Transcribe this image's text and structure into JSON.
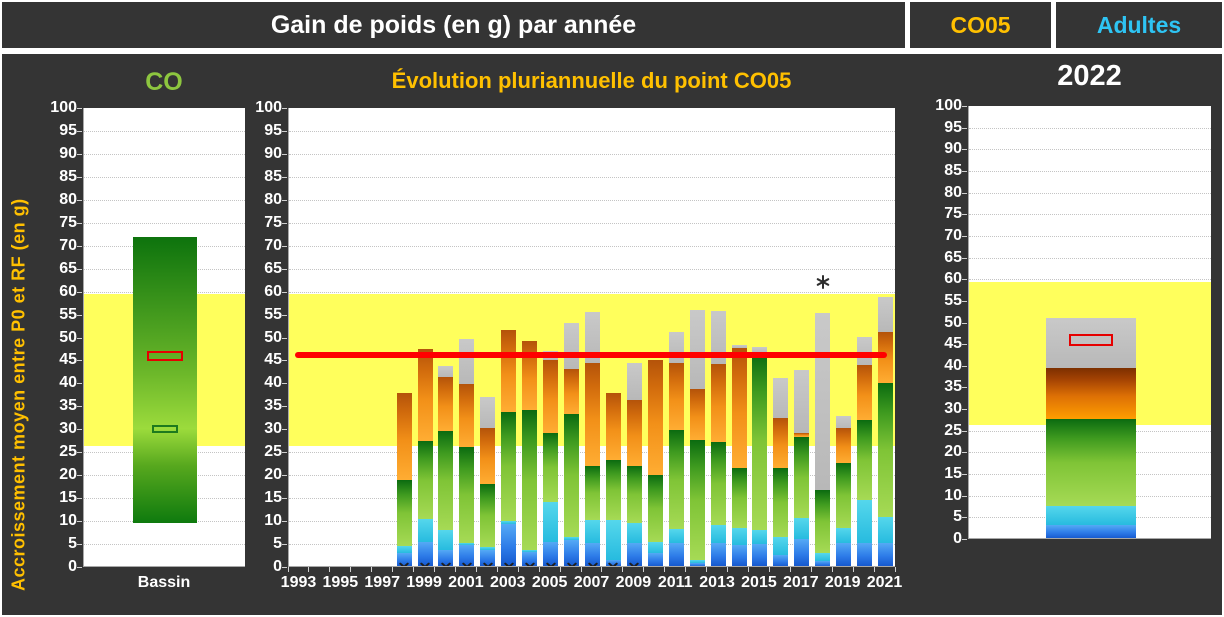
{
  "header": {
    "title": "Gain de poids (en g) par année",
    "code": "CO05",
    "population": "Adultes"
  },
  "y_axis": {
    "title": "Accroissement moyen entre P0 et RF (en g)",
    "min": 0,
    "max": 100,
    "step": 5
  },
  "reference": {
    "band_low": 26.3,
    "band_high": 59.4,
    "line_value": 46.2,
    "band_color": "#FFFF5C",
    "line_color": "#FF0000"
  },
  "colors": {
    "background_dark": "#343434",
    "header_code": "#FFC000",
    "header_population": "#2EC4F3",
    "title_left": "#8DC63F",
    "title_middle": "#FFC000",
    "segment_blue": "#2D7BE8",
    "segment_cyan": "#27BBDF",
    "segment_green": "#0B6B10",
    "segment_orange": "#D06A0C",
    "segment_gray": "#BFBFBF"
  },
  "chart_data": [
    {
      "panel": "left",
      "type": "bar",
      "title": "CO",
      "category_label": "Bassin",
      "ylim": [
        0,
        100
      ],
      "bar_range": [
        9.5,
        72
      ],
      "markers": [
        {
          "name": "red-box",
          "value": 46
        },
        {
          "name": "green-box",
          "value": 30
        }
      ]
    },
    {
      "panel": "middle",
      "type": "stacked-bar",
      "title": "Évolution pluriannuelle du point CO05",
      "ylim": [
        0,
        100
      ],
      "x_range": [
        1993,
        2021
      ],
      "x_tick_labels": [
        "1993",
        "1995",
        "1997",
        "1999",
        "2001",
        "2003",
        "2005",
        "2007",
        "2009",
        "2011",
        "2013",
        "2015",
        "2017",
        "2019",
        "2021"
      ],
      "segment_order": [
        "blue",
        "cyan",
        "green",
        "orange",
        "gray"
      ],
      "reference_line": 46.2,
      "reference_band": [
        26.3,
        59.4
      ],
      "annotation": {
        "symbol": "six-spoke-asterisk",
        "year": 2018,
        "value": 62
      },
      "zero_marker_years": [
        1998,
        1999,
        2000,
        2001,
        2002,
        2003,
        2004,
        2005,
        2006,
        2007,
        2008,
        2009
      ],
      "bars": [
        {
          "year": 1998,
          "tops": {
            "blue": 3.0,
            "cyan": 4.6,
            "green": 19.0,
            "orange": 37.8,
            "gray": null
          }
        },
        {
          "year": 1999,
          "tops": {
            "blue": 5.5,
            "cyan": 10.5,
            "green": 27.5,
            "orange": 47.5,
            "gray": null
          }
        },
        {
          "year": 2000,
          "tops": {
            "blue": 3.8,
            "cyan": 8.1,
            "green": 29.6,
            "orange": 41.5,
            "gray": 43.8
          }
        },
        {
          "year": 2001,
          "tops": {
            "blue": 4.8,
            "cyan": 5.3,
            "green": 26.1,
            "orange": 39.9,
            "gray": 49.6
          }
        },
        {
          "year": 2002,
          "tops": {
            "blue": 3.8,
            "cyan": 4.3,
            "green": 18.1,
            "orange": 30.3,
            "gray": 37.0
          }
        },
        {
          "year": 2003,
          "tops": {
            "blue": 9.3,
            "cyan": 10.0,
            "green": 33.7,
            "orange": 51.6,
            "gray": null
          }
        },
        {
          "year": 2004,
          "tops": {
            "blue": 3.2,
            "cyan": 3.8,
            "green": 34.2,
            "orange": 49.2,
            "gray": null
          }
        },
        {
          "year": 2005,
          "tops": {
            "blue": 5.4,
            "cyan": 14.1,
            "green": 29.3,
            "orange": 45.0,
            "gray": 47.0
          }
        },
        {
          "year": 2006,
          "tops": {
            "blue": 5.9,
            "cyan": 6.6,
            "green": 33.3,
            "orange": 43.1,
            "gray": 53.2
          }
        },
        {
          "year": 2007,
          "tops": {
            "blue": 5.3,
            "cyan": 10.2,
            "green": 22.0,
            "orange": 44.5,
            "gray": 55.5
          }
        },
        {
          "year": 2008,
          "tops": {
            "blue": 1.5,
            "cyan": 10.2,
            "green": 23.3,
            "orange": 37.8,
            "gray": null
          }
        },
        {
          "year": 2009,
          "tops": {
            "blue": 5.2,
            "cyan": 9.5,
            "green": 22.0,
            "orange": 36.4,
            "gray": 44.4
          }
        },
        {
          "year": 2010,
          "tops": {
            "blue": 3.0,
            "cyan": 5.5,
            "green": 20.0,
            "orange": 45.1,
            "gray": null
          }
        },
        {
          "year": 2011,
          "tops": {
            "blue": 5.2,
            "cyan": 8.2,
            "green": 29.8,
            "orange": 44.5,
            "gray": 51.2
          }
        },
        {
          "year": 2012,
          "tops": {
            "blue": 0.8,
            "cyan": 1.5,
            "green": 27.7,
            "orange": 38.8,
            "gray": 56.0
          }
        },
        {
          "year": 2013,
          "tops": {
            "blue": 5.2,
            "cyan": 9.1,
            "green": 27.3,
            "orange": 44.2,
            "gray": 55.8
          }
        },
        {
          "year": 2014,
          "tops": {
            "blue": 4.8,
            "cyan": 8.6,
            "green": 21.5,
            "orange": 47.7,
            "gray": 48.3
          }
        },
        {
          "year": 2015,
          "tops": {
            "blue": 5.0,
            "cyan": 8.1,
            "green": 46.6,
            "orange": null,
            "gray": 48.0
          }
        },
        {
          "year": 2016,
          "tops": {
            "blue": 2.6,
            "cyan": 6.6,
            "green": 21.5,
            "orange": 32.4,
            "gray": 41.1
          }
        },
        {
          "year": 2017,
          "tops": {
            "blue": 6.2,
            "cyan": 10.6,
            "green": 28.4,
            "orange": 29.3,
            "gray": 42.9
          }
        },
        {
          "year": 2018,
          "tops": {
            "blue": 1.2,
            "cyan": 3.0,
            "green": 16.8,
            "orange": null,
            "gray": 55.4
          }
        },
        {
          "year": 2019,
          "tops": {
            "blue": 5.2,
            "cyan": 8.4,
            "green": 22.6,
            "orange": 30.2,
            "gray": 32.8
          }
        },
        {
          "year": 2020,
          "tops": {
            "blue": 5.2,
            "cyan": 14.7,
            "green": 32.0,
            "orange": 44.0,
            "gray": 50.2
          }
        },
        {
          "year": 2021,
          "tops": {
            "blue": 5.2,
            "cyan": 10.8,
            "green": 40.0,
            "orange": 51.3,
            "gray": 58.9
          }
        }
      ]
    },
    {
      "panel": "right",
      "type": "stacked-bar",
      "title": "2022",
      "ylim": [
        0,
        100
      ],
      "bar": {
        "tops": {
          "blue": 3.2,
          "cyan": 7.7,
          "green": 27.7,
          "orange": 39.5,
          "gray": 51.0
        }
      },
      "marker": {
        "name": "red-box",
        "value": 46
      }
    }
  ]
}
